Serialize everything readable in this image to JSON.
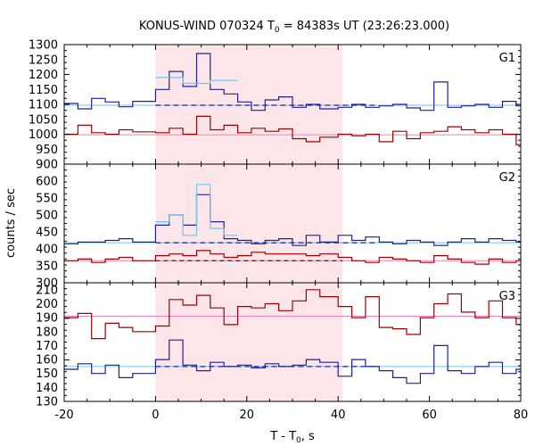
{
  "chart_data": {
    "type": "line",
    "title": "KONUS-WIND 070324 T",
    "title_sub": "0",
    "title_rest": " = 84383s UT (23:26:23.000)",
    "xlabel": "T - T",
    "xlabel_sub": "0",
    "xlabel_rest": ", s",
    "ylabel": "counts / sec",
    "xlim": [
      -20,
      80
    ],
    "x_ticks": [
      "-20",
      "0",
      "20",
      "40",
      "60",
      "80"
    ],
    "highlight_interval": [
      0,
      41
    ],
    "colors": {
      "dark_blue": "#1f1f9f",
      "light_blue": "#6ec6f0",
      "dark_red": "#a00000",
      "pink": "#f080b0",
      "shade": "#fde6ea"
    },
    "panels": [
      {
        "label": "G1",
        "ylim": [
          900,
          1300
        ],
        "y_ticks": [
          "900",
          "950",
          "1000",
          "1050",
          "1100",
          "1150",
          "1200",
          "1250",
          "1300"
        ],
        "blue_bg": 1097,
        "red_bg": 998,
        "series": [
          {
            "role": "blue",
            "bin_edges": [
              -20,
              -17,
              -14,
              -11,
              -8,
              -5,
              0,
              3,
              6,
              9,
              12,
              15,
              18,
              21,
              24,
              27,
              30,
              33,
              36,
              40,
              43,
              46,
              49,
              52,
              55,
              58,
              61,
              64,
              67,
              70,
              73,
              76,
              79,
              80
            ],
            "values": [
              1103,
              1085,
              1120,
              1108,
              1092,
              1110,
              1150,
              1210,
              1160,
              1270,
              1150,
              1135,
              1108,
              1080,
              1115,
              1125,
              1090,
              1100,
              1085,
              1090,
              1100,
              1090,
              1095,
              1100,
              1088,
              1080,
              1175,
              1090,
              1095,
              1100,
              1090,
              1110,
              1095
            ]
          },
          {
            "role": "red",
            "bin_edges": [
              -20,
              -17,
              -14,
              -11,
              -8,
              -5,
              0,
              3,
              6,
              9,
              12,
              15,
              18,
              21,
              24,
              27,
              30,
              33,
              36,
              40,
              43,
              46,
              49,
              52,
              55,
              58,
              61,
              64,
              67,
              70,
              73,
              76,
              79,
              80
            ],
            "values": [
              1000,
              1030,
              1005,
              1000,
              1015,
              1008,
              1005,
              1020,
              1000,
              1060,
              1015,
              1030,
              1005,
              1020,
              1010,
              1018,
              985,
              975,
              990,
              1000,
              995,
              1000,
              975,
              1010,
              985,
              1005,
              1010,
              1025,
              1015,
              1005,
              1015,
              1000,
              965
            ]
          },
          {
            "role": "blue_fit",
            "bin_edges": [
              0,
              6,
              12,
              18
            ],
            "values": [
              1190,
              1170,
              1180
            ]
          }
        ]
      },
      {
        "label": "G2",
        "ylim": [
          300,
          650
        ],
        "y_ticks": [
          "300",
          "350",
          "400",
          "450",
          "500",
          "550",
          "600"
        ],
        "blue_bg": 418,
        "red_bg": 365,
        "series": [
          {
            "role": "blue",
            "bin_edges": [
              -20,
              -17,
              -14,
              -11,
              -8,
              -5,
              0,
              3,
              6,
              9,
              12,
              15,
              18,
              21,
              24,
              27,
              30,
              33,
              36,
              40,
              43,
              46,
              49,
              52,
              55,
              58,
              61,
              64,
              67,
              70,
              73,
              76,
              79,
              80
            ],
            "values": [
              415,
              420,
              420,
              425,
              430,
              420,
              470,
              500,
              470,
              560,
              480,
              430,
              425,
              415,
              425,
              430,
              410,
              440,
              420,
              440,
              425,
              435,
              420,
              415,
              425,
              420,
              410,
              420,
              430,
              420,
              430,
              425,
              420
            ]
          },
          {
            "role": "red",
            "bin_edges": [
              -20,
              -17,
              -14,
              -11,
              -8,
              -5,
              0,
              3,
              6,
              9,
              12,
              15,
              18,
              21,
              24,
              27,
              30,
              33,
              36,
              40,
              43,
              46,
              49,
              52,
              55,
              58,
              61,
              64,
              67,
              70,
              73,
              76,
              79,
              80
            ],
            "values": [
              365,
              370,
              360,
              370,
              375,
              365,
              380,
              385,
              380,
              395,
              385,
              375,
              380,
              390,
              385,
              385,
              385,
              380,
              385,
              375,
              365,
              360,
              375,
              370,
              365,
              360,
              380,
              370,
              360,
              355,
              370,
              360,
              365
            ]
          },
          {
            "role": "blue_fit",
            "bin_edges": [
              0,
              3,
              6,
              9,
              12,
              15,
              18
            ],
            "values": [
              480,
              500,
              440,
              590,
              460,
              440
            ]
          }
        ]
      },
      {
        "label": "G3",
        "ylim": [
          130,
          215
        ],
        "y_ticks": [
          "130",
          "140",
          "150",
          "160",
          "170",
          "180",
          "190",
          "200",
          "210"
        ],
        "blue_bg": 155,
        "red_bg": 191,
        "series": [
          {
            "role": "blue",
            "bin_edges": [
              -20,
              -17,
              -14,
              -11,
              -8,
              -5,
              0,
              3,
              6,
              9,
              12,
              15,
              18,
              21,
              24,
              27,
              30,
              33,
              36,
              40,
              43,
              46,
              49,
              52,
              55,
              58,
              61,
              64,
              67,
              70,
              73,
              76,
              79,
              80
            ],
            "values": [
              153,
              157,
              150,
              156,
              147,
              150,
              160,
              174,
              156,
              152,
              158,
              155,
              156,
              154,
              157,
              155,
              156,
              160,
              158,
              148,
              160,
              155,
              152,
              147,
              143,
              150,
              170,
              152,
              150,
              155,
              158,
              150,
              153
            ]
          },
          {
            "role": "red",
            "bin_edges": [
              -20,
              -17,
              -14,
              -11,
              -8,
              -5,
              0,
              3,
              6,
              9,
              12,
              15,
              18,
              21,
              24,
              27,
              30,
              33,
              36,
              40,
              43,
              46,
              49,
              52,
              55,
              58,
              61,
              64,
              67,
              70,
              73,
              76,
              79,
              80
            ],
            "values": [
              190,
              193,
              175,
              186,
              183,
              180,
              184,
              203,
              199,
              206,
              197,
              185,
              198,
              197,
              200,
              195,
              202,
              210,
              205,
              198,
              190,
              205,
              183,
              182,
              178,
              190,
              200,
              207,
              194,
              190,
              202,
              190,
              185
            ]
          }
        ]
      }
    ]
  }
}
